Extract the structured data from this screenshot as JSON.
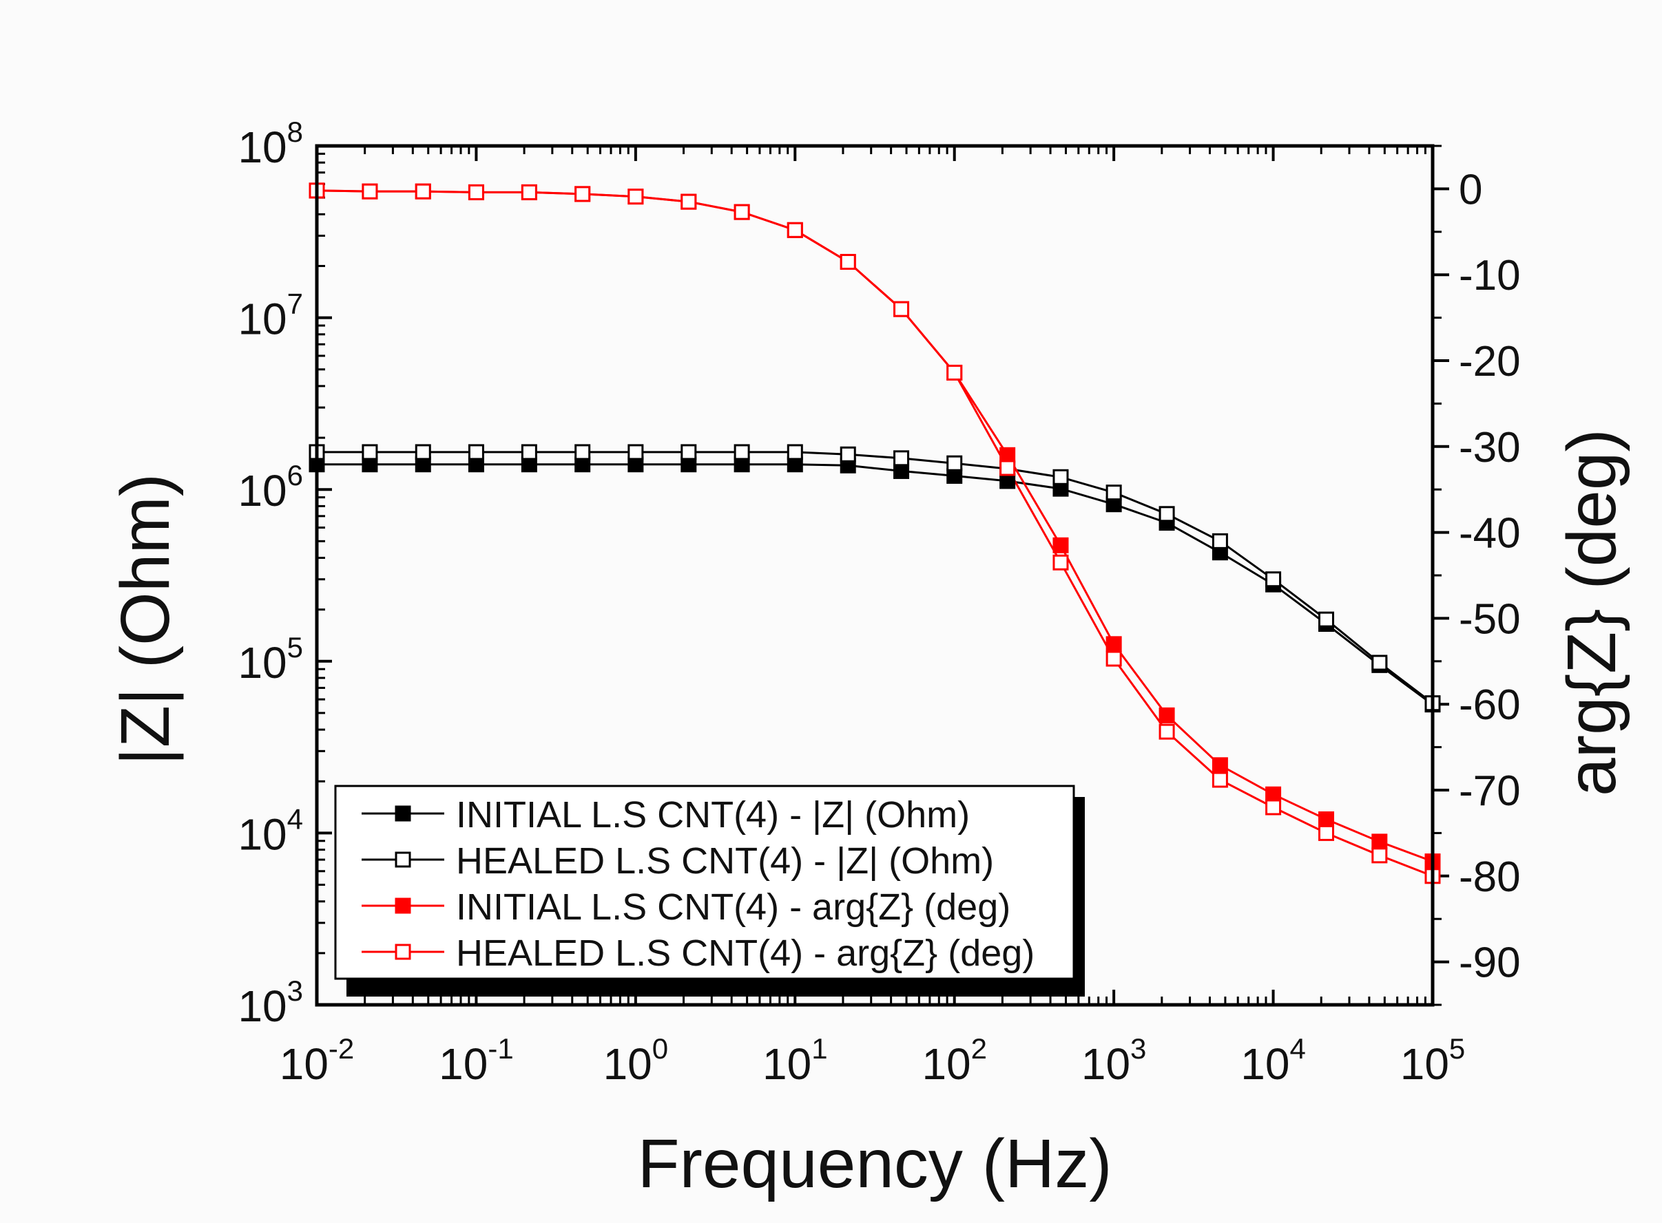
{
  "chart_data": {
    "type": "line",
    "xlabel": "Frequency (Hz)",
    "ylabel_left": "|Z| (Ohm)",
    "ylabel_right": "arg{Z} (deg)",
    "x_scale": "log",
    "xlim": [
      0.01,
      100000
    ],
    "ylim_left": [
      1000,
      100000000
    ],
    "ylim_right": [
      -95,
      5
    ],
    "x_ticks": [
      {
        "base": "10",
        "exp": "-2",
        "value": 0.01
      },
      {
        "base": "10",
        "exp": "-1",
        "value": 0.1
      },
      {
        "base": "10",
        "exp": "0",
        "value": 1
      },
      {
        "base": "10",
        "exp": "1",
        "value": 10
      },
      {
        "base": "10",
        "exp": "2",
        "value": 100
      },
      {
        "base": "10",
        "exp": "3",
        "value": 1000
      },
      {
        "base": "10",
        "exp": "4",
        "value": 10000
      },
      {
        "base": "10",
        "exp": "5",
        "value": 100000
      }
    ],
    "y_left_ticks": [
      {
        "base": "10",
        "exp": "3",
        "value": 1000
      },
      {
        "base": "10",
        "exp": "4",
        "value": 10000
      },
      {
        "base": "10",
        "exp": "5",
        "value": 100000
      },
      {
        "base": "10",
        "exp": "6",
        "value": 1000000
      },
      {
        "base": "10",
        "exp": "7",
        "value": 10000000
      },
      {
        "base": "10",
        "exp": "8",
        "value": 100000000
      }
    ],
    "y_right_ticks": [
      {
        "label": "0",
        "value": 0
      },
      {
        "label": "-10",
        "value": -10
      },
      {
        "label": "-20",
        "value": -20
      },
      {
        "label": "-30",
        "value": -30
      },
      {
        "label": "-40",
        "value": -40
      },
      {
        "label": "-50",
        "value": -50
      },
      {
        "label": "-60",
        "value": -60
      },
      {
        "label": "-70",
        "value": -70
      },
      {
        "label": "-80",
        "value": -80
      },
      {
        "label": "-90",
        "value": -90
      }
    ],
    "x": [
      0.01,
      0.0215,
      0.0464,
      0.1,
      0.215,
      0.464,
      1.0,
      2.15,
      4.64,
      10,
      21.5,
      46.4,
      100,
      215,
      464,
      1000,
      2150,
      4640,
      10000,
      21500,
      46400,
      100000
    ],
    "series": [
      {
        "name": "INITIAL L.S CNT(4) - |Z| (Ohm)",
        "axis": "left",
        "color": "#000000",
        "marker": "filled-square",
        "values": [
          1400000,
          1400000,
          1400000,
          1400000,
          1400000,
          1400000,
          1400000,
          1400000,
          1400000,
          1400000,
          1380000,
          1280000,
          1200000,
          1120000,
          1010000,
          820000,
          640000,
          430000,
          280000,
          165000,
          95000,
          56000
        ]
      },
      {
        "name": "HEALED L.S CNT(4) - |Z| (Ohm)",
        "axis": "left",
        "color": "#000000",
        "marker": "open-square",
        "values": [
          1650000,
          1650000,
          1650000,
          1650000,
          1650000,
          1650000,
          1650000,
          1650000,
          1650000,
          1650000,
          1600000,
          1520000,
          1420000,
          1320000,
          1180000,
          960000,
          720000,
          500000,
          300000,
          175000,
          98000,
          57000
        ]
      },
      {
        "name": "INITIAL L.S CNT(4) - arg{Z} (deg)",
        "axis": "right",
        "color": "#ff0000",
        "marker": "filled-square",
        "values": [
          -0.2,
          -0.3,
          -0.3,
          -0.4,
          -0.4,
          -0.6,
          -0.9,
          -1.5,
          -2.7,
          -4.8,
          -8.5,
          -14.0,
          -21.4,
          -31.0,
          -41.5,
          -53.0,
          -61.3,
          -67.1,
          -70.5,
          -73.4,
          -76.0,
          -78.3
        ]
      },
      {
        "name": "HEALED L.S CNT(4) - arg{Z} (deg)",
        "axis": "right",
        "color": "#ff0000",
        "marker": "open-square",
        "values": [
          -0.2,
          -0.3,
          -0.3,
          -0.4,
          -0.4,
          -0.6,
          -0.9,
          -1.5,
          -2.7,
          -4.8,
          -8.5,
          -14.0,
          -21.4,
          -32.5,
          -43.5,
          -54.7,
          -63.2,
          -68.8,
          -72.0,
          -75.0,
          -77.6,
          -80.0
        ]
      }
    ],
    "legend": {
      "position": "bottom-left",
      "entries": [
        "INITIAL L.S CNT(4) - |Z| (Ohm)",
        "HEALED L.S CNT(4) - |Z| (Ohm)",
        "INITIAL L.S CNT(4) - arg{Z} (deg)",
        "HEALED L.S CNT(4) - arg{Z} (deg)"
      ]
    }
  }
}
